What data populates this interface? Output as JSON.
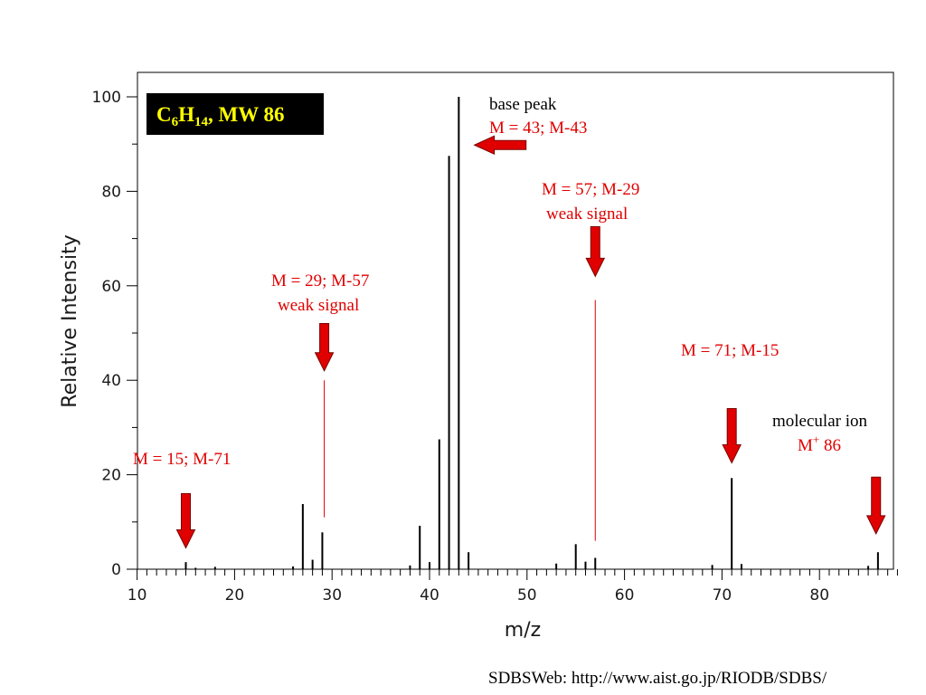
{
  "colors": {
    "frame": "#000000",
    "peak": "#000000",
    "highlight": "#e00000",
    "arrow_fill": "#e00000",
    "arrow_stroke": "#7a0000",
    "badge_bg": "#000000",
    "badge_text": "#ffff00"
  },
  "chart_data": {
    "type": "bar",
    "xlabel": "m/z",
    "ylabel": "Relative Intensity",
    "xlim": [
      10,
      88
    ],
    "ylim": [
      0,
      100
    ],
    "x_ticks": [
      "10",
      "20",
      "30",
      "40",
      "50",
      "60",
      "70",
      "80"
    ],
    "y_ticks": [
      "0",
      "20",
      "40",
      "60",
      "80",
      "100"
    ],
    "grid": false,
    "peaks": [
      {
        "mz": 15,
        "intensity": 1.5
      },
      {
        "mz": 16,
        "intensity": 0.3
      },
      {
        "mz": 18,
        "intensity": 0.5
      },
      {
        "mz": 26,
        "intensity": 0.6
      },
      {
        "mz": 27,
        "intensity": 13.8
      },
      {
        "mz": 28,
        "intensity": 2.0
      },
      {
        "mz": 29,
        "intensity": 7.8
      },
      {
        "mz": 38,
        "intensity": 0.8
      },
      {
        "mz": 39,
        "intensity": 9.2
      },
      {
        "mz": 40,
        "intensity": 1.5
      },
      {
        "mz": 41,
        "intensity": 27.5
      },
      {
        "mz": 42,
        "intensity": 87.5
      },
      {
        "mz": 43,
        "intensity": 100
      },
      {
        "mz": 44,
        "intensity": 3.6
      },
      {
        "mz": 53,
        "intensity": 1.2
      },
      {
        "mz": 55,
        "intensity": 5.3
      },
      {
        "mz": 56,
        "intensity": 1.6
      },
      {
        "mz": 57,
        "intensity": 2.4
      },
      {
        "mz": 69,
        "intensity": 0.9
      },
      {
        "mz": 71,
        "intensity": 19.3
      },
      {
        "mz": 72,
        "intensity": 1.1
      },
      {
        "mz": 85,
        "intensity": 0.7
      },
      {
        "mz": 86,
        "intensity": 3.6
      }
    ],
    "highlight_lines": [
      {
        "mz": 29.2,
        "from": 11,
        "to": 40
      },
      {
        "mz": 57,
        "from": 6,
        "to": 57
      }
    ],
    "arrows": [
      {
        "name": "arrow-m15",
        "dir": "down",
        "mz": 15,
        "top": 16,
        "bottom": 4.5
      },
      {
        "name": "arrow-m29",
        "dir": "down",
        "mz": 29.2,
        "top": 52,
        "bottom": 42
      },
      {
        "name": "arrow-m43",
        "dir": "left",
        "mz_from": 44.6,
        "mz_to": 49.9,
        "y": 89.8
      },
      {
        "name": "arrow-m57",
        "dir": "down",
        "mz": 57,
        "top": 72.5,
        "bottom": 62
      },
      {
        "name": "arrow-m71",
        "dir": "down",
        "mz": 71,
        "top": 34,
        "bottom": 22.5
      },
      {
        "name": "arrow-m86",
        "dir": "down",
        "mz": 85.8,
        "top": 19.5,
        "bottom": 7.5
      }
    ]
  },
  "formula": {
    "c": "C",
    "c_sub": "6",
    "h": "H",
    "h_sub": "14",
    "rest": ", MW 86"
  },
  "annotations": {
    "base_peak": "base peak",
    "m43": "M = 43; M-43",
    "m57": "M = 57; M-29",
    "weak_57": "weak signal",
    "m29": "M = 29; M-57",
    "weak_29": "weak signal",
    "m71": "M = 71; M-15",
    "molecular_ion": "molecular ion",
    "mplus_prefix": "M",
    "mplus_sup": "+",
    "mplus_value": " 86",
    "m15": "M = 15; M-71"
  },
  "footer": "SDBSWeb: http://www.aist.go.jp/RIODB/SDBS/"
}
